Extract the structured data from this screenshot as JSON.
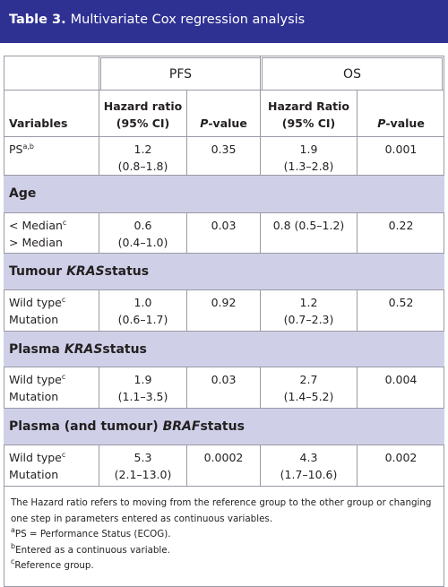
{
  "header": {
    "label": "Table 3.",
    "title": "Multivariate Cox regression analysis"
  },
  "table": {
    "groups": [
      "PFS",
      "OS"
    ],
    "columns": [
      {
        "lines": [
          "Variables"
        ]
      },
      {
        "lines": [
          "Hazard ratio",
          "(95% CI)"
        ]
      },
      {
        "italic": "P",
        "text": "-value"
      },
      {
        "lines": [
          "Hazard Ratio",
          "(95% CI)"
        ]
      },
      {
        "italic": "P",
        "text": "-value"
      }
    ],
    "rows": [
      {
        "type": "row",
        "labels": [
          {
            "text": "PS",
            "sup": "a,b"
          }
        ],
        "cells": [
          [
            "1.2",
            "(0.8–1.8)"
          ],
          [
            "0.35"
          ],
          [
            "1.9",
            "(1.3–2.8)"
          ],
          [
            "0.001"
          ]
        ]
      },
      {
        "type": "section",
        "parts": [
          {
            "text": "Age"
          }
        ]
      },
      {
        "type": "row",
        "labels": [
          {
            "text": "< Median",
            "sup": "c"
          },
          {
            "text": "> Median"
          }
        ],
        "cells": [
          [
            "0.6",
            "(0.4–1.0)"
          ],
          [
            "0.03"
          ],
          [
            "0.8 (0.5–1.2)"
          ],
          [
            "0.22"
          ]
        ]
      },
      {
        "type": "section",
        "parts": [
          {
            "text": "Tumour"
          },
          {
            "text": "KRAS",
            "italic": true
          },
          {
            "text": "status"
          }
        ]
      },
      {
        "type": "row",
        "labels": [
          {
            "text": "Wild type",
            "sup": "c"
          },
          {
            "text": "Mutation"
          }
        ],
        "cells": [
          [
            "1.0",
            "(0.6–1.7)"
          ],
          [
            "0.92"
          ],
          [
            "1.2",
            "(0.7–2.3)"
          ],
          [
            "0.52"
          ]
        ]
      },
      {
        "type": "section",
        "parts": [
          {
            "text": "Plasma"
          },
          {
            "text": "KRAS",
            "italic": true
          },
          {
            "text": "status"
          }
        ]
      },
      {
        "type": "row",
        "labels": [
          {
            "text": "Wild type",
            "sup": "c"
          },
          {
            "text": "Mutation"
          }
        ],
        "cells": [
          [
            "1.9",
            "(1.1–3.5)"
          ],
          [
            "0.03"
          ],
          [
            "2.7",
            "(1.4–5.2)"
          ],
          [
            "0.004"
          ]
        ]
      },
      {
        "type": "section",
        "parts": [
          {
            "text": "Plasma (and tumour)"
          },
          {
            "text": "BRAF",
            "italic": true
          },
          {
            "text": "status"
          }
        ]
      },
      {
        "type": "row",
        "labels": [
          {
            "text": "Wild type",
            "sup": "c"
          },
          {
            "text": "Mutation"
          }
        ],
        "cells": [
          [
            "5.3",
            "(2.1–13.0)"
          ],
          [
            "0.0002"
          ],
          [
            "4.3",
            "(1.7–10.6)"
          ],
          [
            "0.002"
          ]
        ]
      }
    ]
  },
  "notes": {
    "text": "The Hazard ratio refers to moving from the reference group to the other group or changing one step in parameters entered as continuous variables.",
    "footnotes": [
      {
        "mark": "a",
        "text": "PS = Performance Status (ECOG)."
      },
      {
        "mark": "b",
        "text": "Entered as a continuous variable."
      },
      {
        "mark": "c",
        "text": "Reference group."
      }
    ]
  }
}
